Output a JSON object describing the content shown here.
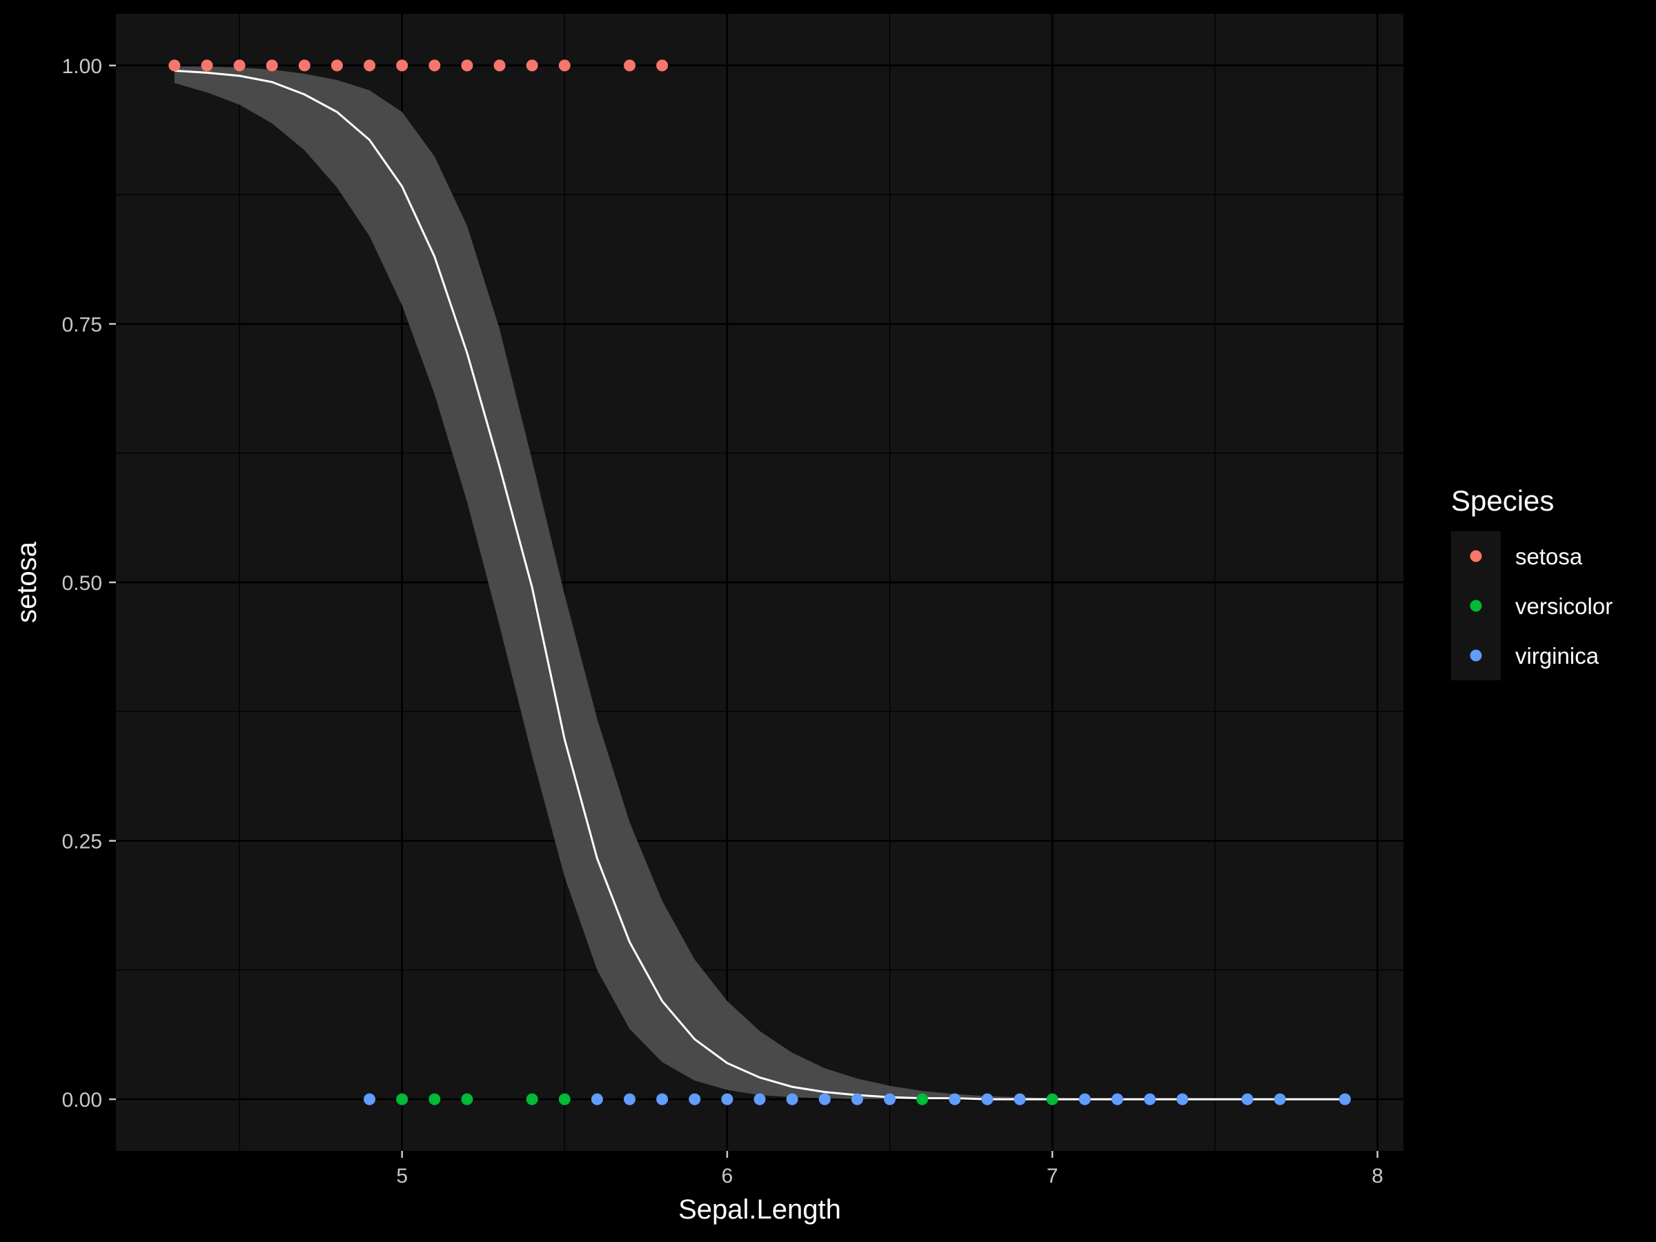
{
  "chart_data": {
    "type": "scatter",
    "xlabel": "Sepal.Length",
    "ylabel": "setosa",
    "xlim": [
      4.12,
      8.08
    ],
    "ylim": [
      -0.05,
      1.05
    ],
    "x_ticks": [
      5,
      6,
      7,
      8
    ],
    "x_tick_labels": [
      "5",
      "6",
      "7",
      "8"
    ],
    "y_ticks": [
      0,
      0.25,
      0.5,
      0.75,
      1.0
    ],
    "y_tick_labels": [
      "0.00",
      "0.25",
      "0.50",
      "0.75",
      "1.00"
    ],
    "grid": true,
    "legend": {
      "title": "Species",
      "position": "right",
      "entries": [
        "setosa",
        "versicolor",
        "virginica"
      ]
    },
    "colors": {
      "background": "#000000",
      "panel": "#141414",
      "setosa": "#F8766D",
      "versicolor": "#00BA38",
      "virginica": "#619CFF",
      "ribbon": "#4d4d4d",
      "fit_line": "#ffffff"
    },
    "series": [
      {
        "name": "setosa",
        "x": [
          4.3,
          4.4,
          4.5,
          4.6,
          4.7,
          4.8,
          4.9,
          5.0,
          5.1,
          5.2,
          5.3,
          5.4,
          5.5,
          5.7,
          5.8
        ],
        "y": [
          1,
          1,
          1,
          1,
          1,
          1,
          1,
          1,
          1,
          1,
          1,
          1,
          1,
          1,
          1
        ]
      },
      {
        "name": "versicolor",
        "x": [
          5.0,
          5.1,
          5.2,
          5.4,
          5.5,
          6.6,
          7.0
        ],
        "y": [
          0,
          0,
          0,
          0,
          0,
          0,
          0
        ]
      },
      {
        "name": "virginica",
        "x": [
          4.9,
          5.6,
          5.7,
          5.8,
          5.9,
          6.0,
          6.1,
          6.2,
          6.3,
          6.4,
          6.5,
          6.7,
          6.8,
          6.9,
          7.1,
          7.2,
          7.3,
          7.4,
          7.6,
          7.7,
          7.9
        ],
        "y": [
          0,
          0,
          0,
          0,
          0,
          0,
          0,
          0,
          0,
          0,
          0,
          0,
          0,
          0,
          0,
          0,
          0,
          0,
          0,
          0,
          0
        ]
      }
    ],
    "fit": {
      "x": [
        4.3,
        4.4,
        4.5,
        4.6,
        4.7,
        4.8,
        4.9,
        5.0,
        5.1,
        5.2,
        5.3,
        5.4,
        5.5,
        5.6,
        5.7,
        5.8,
        5.9,
        6.0,
        6.1,
        6.2,
        6.3,
        6.4,
        6.5,
        6.6,
        6.7,
        6.8,
        6.9,
        7.0,
        7.1,
        7.2,
        7.3,
        7.4,
        7.5,
        7.6,
        7.7,
        7.8,
        7.9
      ],
      "y": [
        0.995,
        0.993,
        0.99,
        0.984,
        0.972,
        0.955,
        0.928,
        0.883,
        0.815,
        0.722,
        0.612,
        0.495,
        0.348,
        0.233,
        0.152,
        0.095,
        0.058,
        0.035,
        0.021,
        0.012,
        0.007,
        0.004,
        0.002,
        0.001,
        0.001,
        0.0,
        0.0,
        0.0,
        0.0,
        0.0,
        0.0,
        0.0,
        0.0,
        0.0,
        0.0,
        0.0,
        0.0
      ],
      "lower": [
        0.983,
        0.974,
        0.962,
        0.944,
        0.918,
        0.882,
        0.835,
        0.768,
        0.682,
        0.578,
        0.458,
        0.332,
        0.215,
        0.125,
        0.068,
        0.036,
        0.018,
        0.009,
        0.004,
        0.002,
        0.001,
        0.0,
        0.0,
        0.0,
        0.0,
        0.0,
        0.0,
        0.0,
        0.0,
        0.0,
        0.0,
        0.0,
        0.0,
        0.0,
        0.0,
        0.0,
        0.0
      ],
      "upper": [
        0.999,
        0.999,
        0.998,
        0.996,
        0.992,
        0.986,
        0.976,
        0.955,
        0.912,
        0.845,
        0.745,
        0.618,
        0.488,
        0.368,
        0.268,
        0.192,
        0.135,
        0.095,
        0.066,
        0.045,
        0.03,
        0.02,
        0.013,
        0.008,
        0.005,
        0.003,
        0.002,
        0.001,
        0.001,
        0.0,
        0.0,
        0.0,
        0.0,
        0.0,
        0.0,
        0.0,
        0.0
      ]
    }
  }
}
